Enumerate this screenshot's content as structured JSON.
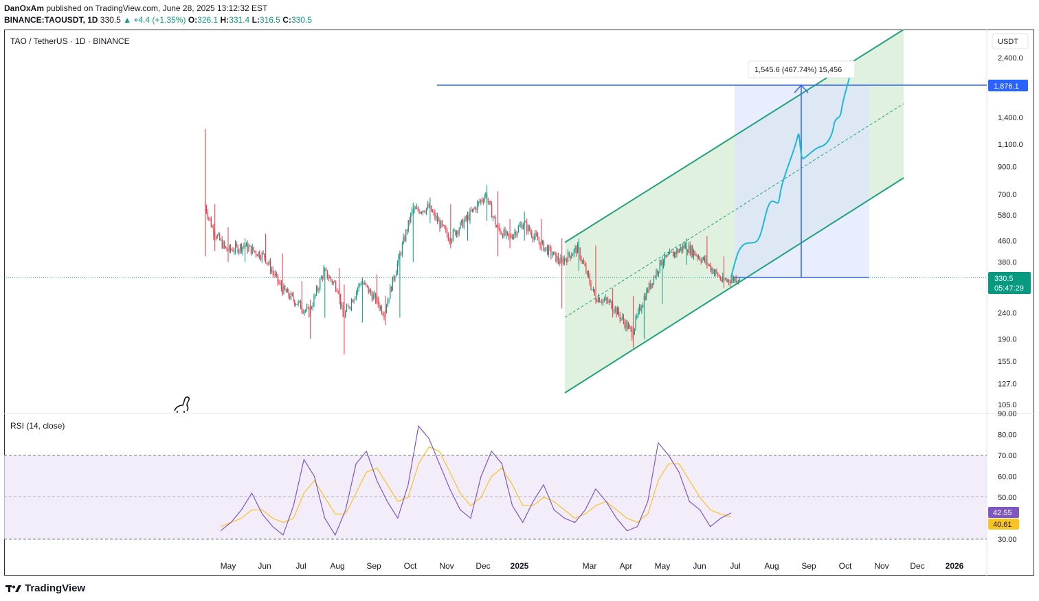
{
  "header": {
    "publisher": "DanOxAm",
    "published_text": " published on TradingView.com, June 28, 2025 13:12:32 EST",
    "symbol": "BINANCE:TAOUSDT, 1D",
    "price": "330.5",
    "change": "+4.4 (+1.35%)",
    "o_label": "O:",
    "o_value": "326.1",
    "h_label": "H:",
    "h_value": "331.4",
    "l_label": "L:",
    "l_value": "316.5",
    "c_label": "C:",
    "c_value": "330.5"
  },
  "pane_title": "TAO / TetherUS · 1D · BINANCE",
  "currency": "USDT",
  "branding": "TradingView",
  "colors": {
    "up": "#089981",
    "down": "#f23645",
    "channel": "#1fa27a",
    "channel_fill": "#d8eed8",
    "target": "#2962ff",
    "projection": "#1eb8d6",
    "rsi": "#7e57c2",
    "rsi_ma": "#f7c325"
  },
  "chart_data": {
    "type": "candlestick",
    "price_axis": {
      "scale": "log",
      "range": [
        95,
        3000
      ],
      "ticks": [
        "2,400.0",
        "1,400.0",
        "1,100.0",
        "900.0",
        "700.0",
        "580.0",
        "460.0",
        "380.0",
        "240.0",
        "190.0",
        "155.0",
        "127.0",
        "105.0"
      ]
    },
    "time_axis": {
      "labels": [
        "May",
        "Jun",
        "Jul",
        "Aug",
        "Sep",
        "Oct",
        "Nov",
        "Dec",
        "2025",
        "Mar",
        "Apr",
        "May",
        "Jun",
        "Jul",
        "Aug",
        "Sep",
        "Oct",
        "Nov",
        "Dec",
        "2026"
      ]
    },
    "last_price": {
      "value": 330.5,
      "label": "330.5",
      "countdown": "05:47:29"
    },
    "target_level": {
      "value": 1876.1,
      "label": "1,876.1"
    },
    "measure": {
      "label": "1,545.6 (467.74%) 15,456"
    },
    "channel": "ascending parallel channel with dashed midline",
    "projection": "cyan projected price path rising toward the target",
    "candles_approx": [
      [
        "2024-04-12",
        1260,
        1260,
        400,
        650
      ],
      [
        "2024-04-20",
        620,
        640,
        420,
        500
      ],
      [
        "2024-05-01",
        500,
        520,
        380,
        420
      ],
      [
        "2024-05-15",
        420,
        470,
        380,
        440
      ],
      [
        "2024-06-01",
        440,
        490,
        380,
        400
      ],
      [
        "2024-06-15",
        400,
        410,
        280,
        300
      ],
      [
        "2024-07-01",
        300,
        320,
        240,
        255
      ],
      [
        "2024-07-08",
        255,
        270,
        190,
        240
      ],
      [
        "2024-07-20",
        240,
        360,
        230,
        350
      ],
      [
        "2024-08-01",
        350,
        360,
        260,
        300
      ],
      [
        "2024-08-05",
        300,
        310,
        165,
        230
      ],
      [
        "2024-08-20",
        230,
        330,
        220,
        320
      ],
      [
        "2024-09-01",
        320,
        340,
        260,
        270
      ],
      [
        "2024-09-08",
        270,
        280,
        215,
        240
      ],
      [
        "2024-09-20",
        240,
        400,
        230,
        390
      ],
      [
        "2024-10-01",
        390,
        650,
        380,
        600
      ],
      [
        "2024-10-15",
        600,
        680,
        540,
        620
      ],
      [
        "2024-11-01",
        620,
        640,
        430,
        470
      ],
      [
        "2024-11-15",
        470,
        600,
        460,
        560
      ],
      [
        "2024-12-01",
        560,
        760,
        550,
        700
      ],
      [
        "2024-12-10",
        700,
        720,
        400,
        520
      ],
      [
        "2024-12-20",
        520,
        560,
        430,
        470
      ],
      [
        "2025-01-01",
        470,
        600,
        460,
        540
      ],
      [
        "2025-01-15",
        540,
        560,
        420,
        450
      ],
      [
        "2025-02-01",
        450,
        470,
        250,
        380
      ],
      [
        "2025-02-15",
        380,
        470,
        350,
        430
      ],
      [
        "2025-03-01",
        430,
        440,
        260,
        280
      ],
      [
        "2025-03-15",
        280,
        300,
        230,
        260
      ],
      [
        "2025-04-01",
        260,
        280,
        175,
        200
      ],
      [
        "2025-04-10",
        200,
        280,
        190,
        270
      ],
      [
        "2025-04-25",
        270,
        400,
        260,
        380
      ],
      [
        "2025-05-15",
        380,
        470,
        370,
        440
      ],
      [
        "2025-06-01",
        440,
        480,
        360,
        380
      ],
      [
        "2025-06-15",
        380,
        400,
        300,
        320
      ],
      [
        "2025-06-28",
        326.1,
        331.4,
        316.5,
        330.5
      ]
    ]
  },
  "rsi": {
    "title": "RSI (14, close)",
    "ticks": [
      "90.00",
      "80.00",
      "70.00",
      "60.00",
      "50.00",
      "30.00"
    ],
    "value": "42.55",
    "ma_value": "40.61",
    "series_approx": [
      34,
      38,
      44,
      52,
      42,
      36,
      32,
      46,
      68,
      60,
      40,
      32,
      44,
      66,
      72,
      58,
      48,
      40,
      56,
      84,
      78,
      66,
      54,
      44,
      40,
      60,
      72,
      66,
      46,
      38,
      48,
      56,
      44,
      40,
      38,
      44,
      54,
      48,
      40,
      34,
      36,
      48,
      76,
      70,
      62,
      48,
      44,
      36,
      40,
      42.55
    ],
    "ma_approx": [
      36,
      38,
      40,
      44,
      44,
      40,
      38,
      40,
      52,
      58,
      50,
      42,
      42,
      52,
      62,
      64,
      56,
      48,
      50,
      66,
      74,
      72,
      62,
      52,
      46,
      50,
      60,
      64,
      56,
      46,
      46,
      50,
      48,
      44,
      40,
      42,
      46,
      48,
      44,
      40,
      38,
      42,
      58,
      66,
      66,
      58,
      50,
      44,
      42,
      40.61
    ]
  }
}
